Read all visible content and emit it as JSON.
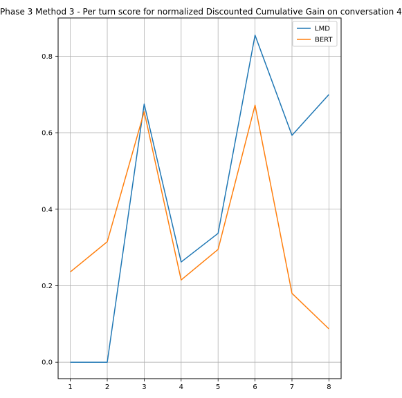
{
  "chart_data": {
    "type": "line",
    "title": "Phase 3 Method 3 - Per turn score for normalized Discounted Cumulative Gain on conversation 4",
    "xlabel": "",
    "ylabel": "",
    "x": [
      1,
      2,
      3,
      4,
      5,
      6,
      7,
      8
    ],
    "xlim": [
      0.67,
      8.33
    ],
    "ylim": [
      -0.043,
      0.9
    ],
    "xticks": [
      "1",
      "2",
      "3",
      "4",
      "5",
      "6",
      "7",
      "8"
    ],
    "yticks": [
      "0.0",
      "0.2",
      "0.4",
      "0.6",
      "0.8"
    ],
    "grid": true,
    "legend_position": "top-right",
    "series": [
      {
        "name": "LMD",
        "color": "#1f77b4",
        "values": [
          0.0,
          0.0,
          0.675,
          0.262,
          0.337,
          0.855,
          0.593,
          0.7
        ]
      },
      {
        "name": "BERT",
        "color": "#ff7f0e",
        "values": [
          0.236,
          0.315,
          0.655,
          0.215,
          0.295,
          0.672,
          0.18,
          0.087
        ]
      }
    ]
  }
}
